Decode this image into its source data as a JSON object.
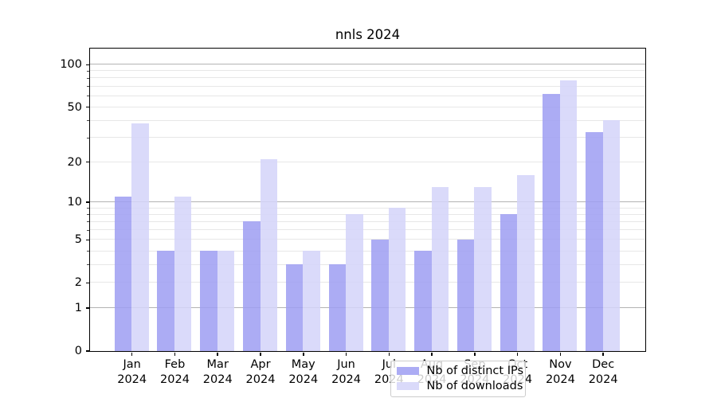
{
  "title": "nnls 2024",
  "chart_data": {
    "type": "bar",
    "title": "nnls 2024",
    "categories": [
      "Jan 2024",
      "Feb 2024",
      "Mar 2024",
      "Apr 2024",
      "May 2024",
      "Jun 2024",
      "Jul 2024",
      "Aug 2024",
      "Sep 2024",
      "Oct 2024",
      "Nov 2024",
      "Dec 2024"
    ],
    "month_labels": [
      "Jan",
      "Feb",
      "Mar",
      "Apr",
      "May",
      "Jun",
      "Jul",
      "Aug",
      "Sep",
      "Oct",
      "Nov",
      "Dec"
    ],
    "year_label": "2024",
    "series": [
      {
        "name": "Nb of distinct IPs",
        "color": "#9d9df2",
        "values": [
          11,
          4,
          4,
          7,
          3,
          3,
          5,
          4,
          5,
          8,
          62,
          33
        ]
      },
      {
        "name": "Nb of downloads",
        "color": "#d4d4f9",
        "values": [
          38,
          11,
          4,
          21,
          4,
          8,
          9,
          13,
          13,
          16,
          77,
          40
        ]
      }
    ],
    "yscale": "log1p",
    "ylim": [
      0,
      130
    ],
    "yticks": [
      0,
      1,
      2,
      5,
      10,
      20,
      50,
      100
    ],
    "minor_yticks": [
      3,
      4,
      6,
      7,
      8,
      9,
      30,
      40,
      60,
      70,
      80,
      90
    ],
    "grid": true,
    "legend_position": "lower center"
  },
  "legend": {
    "items": [
      {
        "label": "Nb of distinct IPs",
        "color": "#9d9df2"
      },
      {
        "label": "Nb of downloads",
        "color": "#d4d4f9"
      }
    ]
  },
  "colors": {
    "background": "#ffffff",
    "axis": "#000000",
    "major_grid": "#b3b3b3",
    "minor_grid": "#e7e7e7"
  }
}
